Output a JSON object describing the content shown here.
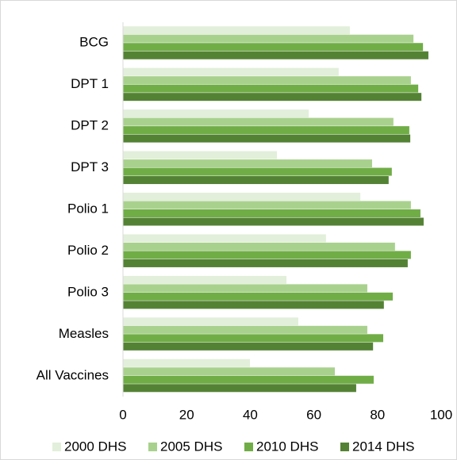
{
  "chart_data": {
    "type": "hbar",
    "categories": [
      "BCG",
      "DPT 1",
      "DPT 2",
      "DPT 3",
      "Polio 1",
      "Polio 2",
      "Polio 3",
      "Measles",
      "All Vaccines"
    ],
    "series": [
      {
        "name": "2000 DHS",
        "color": "#e2efda",
        "values": [
          71.3,
          67.8,
          58.4,
          48.4,
          74.6,
          63.8,
          51.4,
          55.1,
          39.9
        ]
      },
      {
        "name": "2005 DHS",
        "color": "#a9d18e",
        "values": [
          91.3,
          90.5,
          85.0,
          78.3,
          90.5,
          85.5,
          76.8,
          76.8,
          66.6
        ]
      },
      {
        "name": "2010 DHS",
        "color": "#70ad47",
        "values": [
          94.3,
          92.8,
          90.0,
          84.5,
          93.5,
          90.5,
          84.8,
          81.8,
          78.8
        ]
      },
      {
        "name": "2014 DHS",
        "color": "#548235",
        "values": [
          96.0,
          93.8,
          90.3,
          83.5,
          94.5,
          89.5,
          82.0,
          78.6,
          73.3
        ]
      }
    ],
    "xlim": [
      0,
      100
    ],
    "xticks": [
      0,
      20,
      40,
      60,
      80,
      100
    ]
  }
}
